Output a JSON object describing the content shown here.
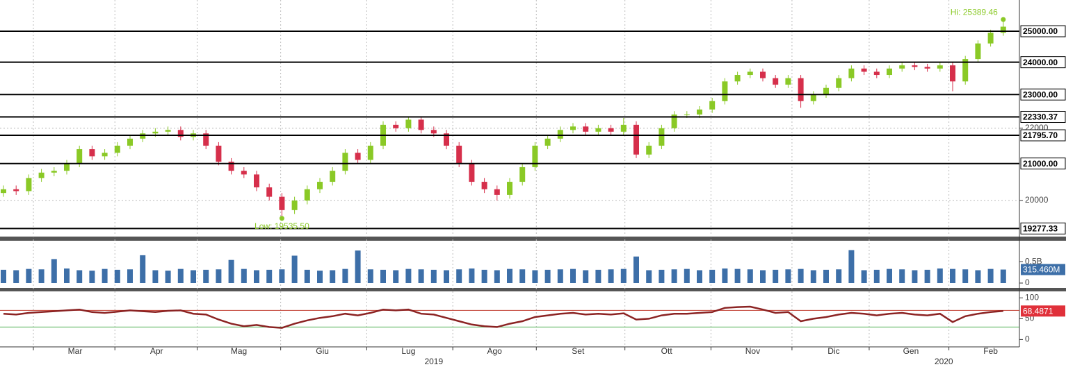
{
  "chart_data": [
    {
      "type": "candlestick",
      "open": [
        20200,
        20300,
        20250,
        20600,
        20750,
        20800,
        21000,
        21400,
        21200,
        21300,
        21500,
        21700,
        21850,
        21900,
        21950,
        21750,
        21850,
        21500,
        21050,
        20800,
        20700,
        20350,
        20100,
        19750,
        20000,
        20300,
        20500,
        20800,
        21300,
        21100,
        21500,
        22100,
        22000,
        22250,
        21950,
        21850,
        21500,
        21000,
        20500,
        20300,
        20150,
        20500,
        20900,
        21500,
        21700,
        21950,
        22050,
        21900,
        22000,
        21900,
        22100,
        21250,
        21500,
        22000,
        22400,
        22400,
        22550,
        22800,
        23400,
        23600,
        23700,
        23500,
        23300,
        23500,
        22800,
        23000,
        23200,
        23500,
        23800,
        23700,
        23600,
        23800,
        23900,
        23850,
        23800,
        23900,
        23400,
        24100,
        24600,
        24950
      ],
      "high": [
        20400,
        20400,
        20700,
        20850,
        20900,
        21100,
        21500,
        21500,
        21400,
        21600,
        21800,
        21950,
        22000,
        22050,
        22050,
        21950,
        21950,
        21600,
        21150,
        20900,
        20800,
        20450,
        20200,
        20100,
        20400,
        20600,
        20900,
        21400,
        21400,
        21600,
        22200,
        22200,
        22350,
        22350,
        22050,
        21950,
        21600,
        21100,
        20600,
        20400,
        20600,
        21000,
        21600,
        21800,
        22050,
        22150,
        22150,
        22100,
        22100,
        22300,
        22200,
        21600,
        22100,
        22500,
        22500,
        22650,
        22900,
        23500,
        23700,
        23800,
        23800,
        23600,
        23600,
        23600,
        23100,
        23300,
        23600,
        23900,
        23900,
        23800,
        23900,
        24000,
        24000,
        23950,
        24000,
        24000,
        24200,
        24700,
        25050,
        25389.46
      ],
      "low": [
        20100,
        20150,
        20150,
        20500,
        20650,
        20700,
        20900,
        21100,
        21100,
        21200,
        21400,
        21600,
        21750,
        21800,
        21650,
        21650,
        21400,
        20950,
        20700,
        20600,
        20250,
        20000,
        19535.5,
        19650,
        19900,
        20200,
        20400,
        20700,
        21000,
        21000,
        21400,
        21900,
        21900,
        21850,
        21750,
        21400,
        20900,
        20400,
        20200,
        20000,
        20050,
        20400,
        20800,
        21400,
        21600,
        21850,
        21800,
        21800,
        21800,
        21800,
        21150,
        21150,
        21400,
        21900,
        22300,
        22300,
        22450,
        22700,
        23300,
        23500,
        23400,
        23200,
        23200,
        22600,
        22700,
        22900,
        23100,
        23400,
        23600,
        23500,
        23500,
        23700,
        23750,
        23700,
        23700,
        23100,
        23300,
        24000,
        24500,
        24850
      ],
      "close": [
        20300,
        20250,
        20600,
        20750,
        20800,
        21000,
        21400,
        21200,
        21300,
        21500,
        21700,
        21850,
        21900,
        21950,
        21750,
        21850,
        21500,
        21050,
        20800,
        20700,
        20350,
        20100,
        19750,
        20000,
        20300,
        20500,
        20800,
        21300,
        21100,
        21500,
        22100,
        22000,
        22250,
        21950,
        21850,
        21500,
        21000,
        20500,
        20300,
        20150,
        20500,
        20900,
        21500,
        21700,
        21950,
        22050,
        21900,
        22000,
        21900,
        22100,
        21250,
        21500,
        22000,
        22400,
        22400,
        22550,
        22800,
        23400,
        23600,
        23700,
        23500,
        23300,
        23500,
        22800,
        23000,
        23200,
        23500,
        23800,
        23700,
        23600,
        23800,
        23900,
        23850,
        23800,
        23900,
        23400,
        24100,
        24600,
        24950,
        25150
      ],
      "up_color": "#8ac926",
      "down_color": "#d62f4b",
      "log_scale": true,
      "ylim": [
        19090,
        26050
      ],
      "yticks": [
        20000,
        22000
      ],
      "grid": true,
      "levels": [
        {
          "value": 25000,
          "label": "25000.00"
        },
        {
          "value": 24000,
          "label": "24000.00"
        },
        {
          "value": 23000,
          "label": "23000.00"
        },
        {
          "value": 22330.37,
          "label": "22330.37"
        },
        {
          "value": 21795.7,
          "label": "21795.70"
        },
        {
          "value": 21000,
          "label": "21000.00"
        },
        {
          "value": 19277.33,
          "label": "19277.33"
        }
      ],
      "annotations": [
        "Hi: 25389.46",
        "Low: 19535.50"
      ]
    },
    {
      "type": "bar",
      "color": "#3d6fa8",
      "values": [
        310,
        300,
        330,
        320,
        560,
        340,
        300,
        290,
        330,
        310,
        320,
        650,
        300,
        290,
        330,
        300,
        310,
        320,
        540,
        330,
        300,
        310,
        320,
        640,
        310,
        290,
        300,
        330,
        760,
        320,
        310,
        300,
        330,
        320,
        310,
        300,
        320,
        340,
        310,
        300,
        330,
        320,
        300,
        310,
        320,
        330,
        300,
        310,
        320,
        330,
        620,
        300,
        310,
        320,
        330,
        300,
        310,
        340,
        330,
        320,
        300,
        310,
        320,
        330,
        300,
        310,
        320,
        770,
        300,
        310,
        330,
        320,
        300,
        310,
        340,
        330,
        320,
        300,
        330,
        315.46
      ],
      "last_label": "315.460M",
      "ylim": [
        0,
        940
      ],
      "yticks": [
        0,
        {
          "value": 500,
          "label": "0.5B"
        }
      ]
    },
    {
      "type": "line",
      "color": "#8b2323",
      "values": [
        62,
        60,
        64,
        66,
        68,
        70,
        72,
        66,
        64,
        67,
        70,
        68,
        66,
        69,
        70,
        62,
        60,
        48,
        38,
        32,
        35,
        30,
        28,
        38,
        46,
        52,
        56,
        62,
        58,
        64,
        72,
        70,
        72,
        62,
        60,
        52,
        44,
        36,
        32,
        30,
        38,
        44,
        54,
        58,
        62,
        64,
        60,
        62,
        60,
        63,
        48,
        50,
        58,
        62,
        62,
        64,
        66,
        76,
        78,
        79,
        72,
        64,
        66,
        44,
        50,
        54,
        60,
        64,
        62,
        58,
        62,
        64,
        60,
        58,
        62,
        42,
        56,
        62,
        66,
        68.4871
      ],
      "ylim": [
        -16,
        114
      ],
      "yticks": [
        0,
        50,
        100
      ],
      "bands": [
        {
          "value": 70,
          "color": "#c0392b"
        },
        {
          "value": 30,
          "color": "#4caf50"
        }
      ],
      "xticks": [
        {
          "value": 5.66,
          "label": "Mar"
        },
        {
          "value": 12.1,
          "label": "Apr"
        },
        {
          "value": 18.6,
          "label": "Mag"
        },
        {
          "value": 25.2,
          "label": "Giu"
        },
        {
          "value": 32.0,
          "label": "Lug"
        },
        {
          "value": 38.8,
          "label": "Ago"
        },
        {
          "value": 45.4,
          "label": "Set"
        },
        {
          "value": 52.4,
          "label": "Ott"
        },
        {
          "value": 59.2,
          "label": "Nov"
        },
        {
          "value": 65.6,
          "label": "Dic"
        },
        {
          "value": 71.7,
          "label": "Gen"
        },
        {
          "value": 78.0,
          "label": "Feb"
        }
      ],
      "years": [
        {
          "value": 34.0,
          "label": "2019"
        },
        {
          "value": 74.3,
          "label": "2020"
        }
      ]
    }
  ]
}
